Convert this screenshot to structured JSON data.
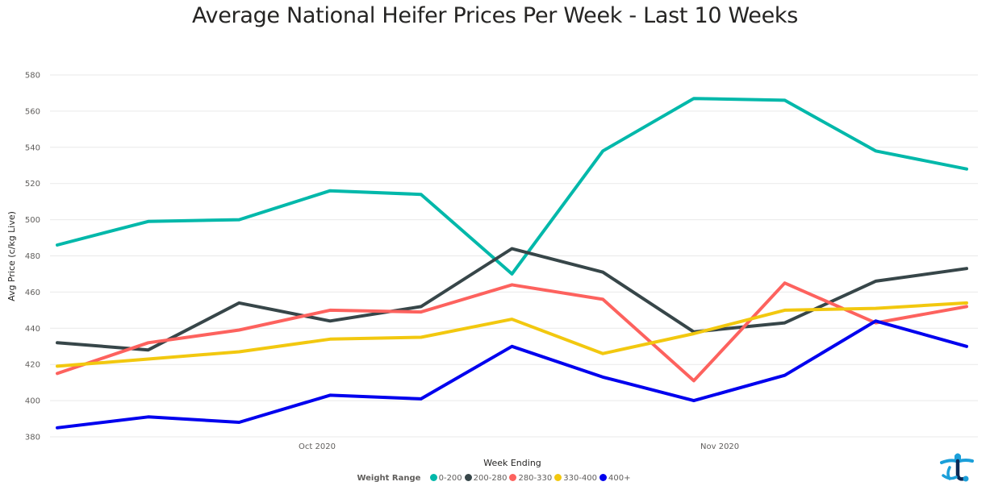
{
  "chart_data": {
    "type": "line",
    "title": "Average National Heifer Prices Per Week - Last 10 Weeks",
    "xlabel": "Week Ending",
    "ylabel": "Avg Price (c/kg Live)",
    "ylim": [
      380,
      580
    ],
    "yticks": [
      380,
      400,
      420,
      440,
      460,
      480,
      500,
      520,
      540,
      560,
      580
    ],
    "xtick_labels": [
      "Oct 2020",
      "Nov 2020"
    ],
    "x": [
      "2020-09-11",
      "2020-09-18",
      "2020-09-25",
      "2020-10-02",
      "2020-10-09",
      "2020-10-16",
      "2020-10-23",
      "2020-10-30",
      "2020-11-06",
      "2020-11-13",
      "2020-11-20"
    ],
    "xtick_dates": [
      "2020-10-01",
      "2020-11-01"
    ],
    "grid": true,
    "legend_title": "Weight Range",
    "legend_position": "bottom",
    "series": [
      {
        "name": "0-200",
        "color": "#01B8AA",
        "values": [
          486,
          499,
          500,
          516,
          514,
          470,
          538,
          567,
          566,
          538,
          528
        ]
      },
      {
        "name": "200-280",
        "color": "#374649",
        "values": [
          432,
          428,
          454,
          444,
          452,
          484,
          471,
          438,
          443,
          466,
          473
        ]
      },
      {
        "name": "280-330",
        "color": "#FD625E",
        "values": [
          415,
          432,
          439,
          450,
          449,
          464,
          456,
          411,
          465,
          443,
          452
        ]
      },
      {
        "name": "330-400",
        "color": "#F2C80F",
        "values": [
          419,
          423,
          427,
          434,
          435,
          445,
          426,
          437,
          450,
          451,
          454
        ]
      },
      {
        "name": "400+",
        "color": "#0000EE",
        "values": [
          385,
          391,
          388,
          403,
          401,
          430,
          413,
          400,
          414,
          444,
          430
        ]
      }
    ]
  },
  "logo": {
    "name": "brand-logo",
    "colors": [
      "#1B9FD9",
      "#0B2A57"
    ]
  }
}
